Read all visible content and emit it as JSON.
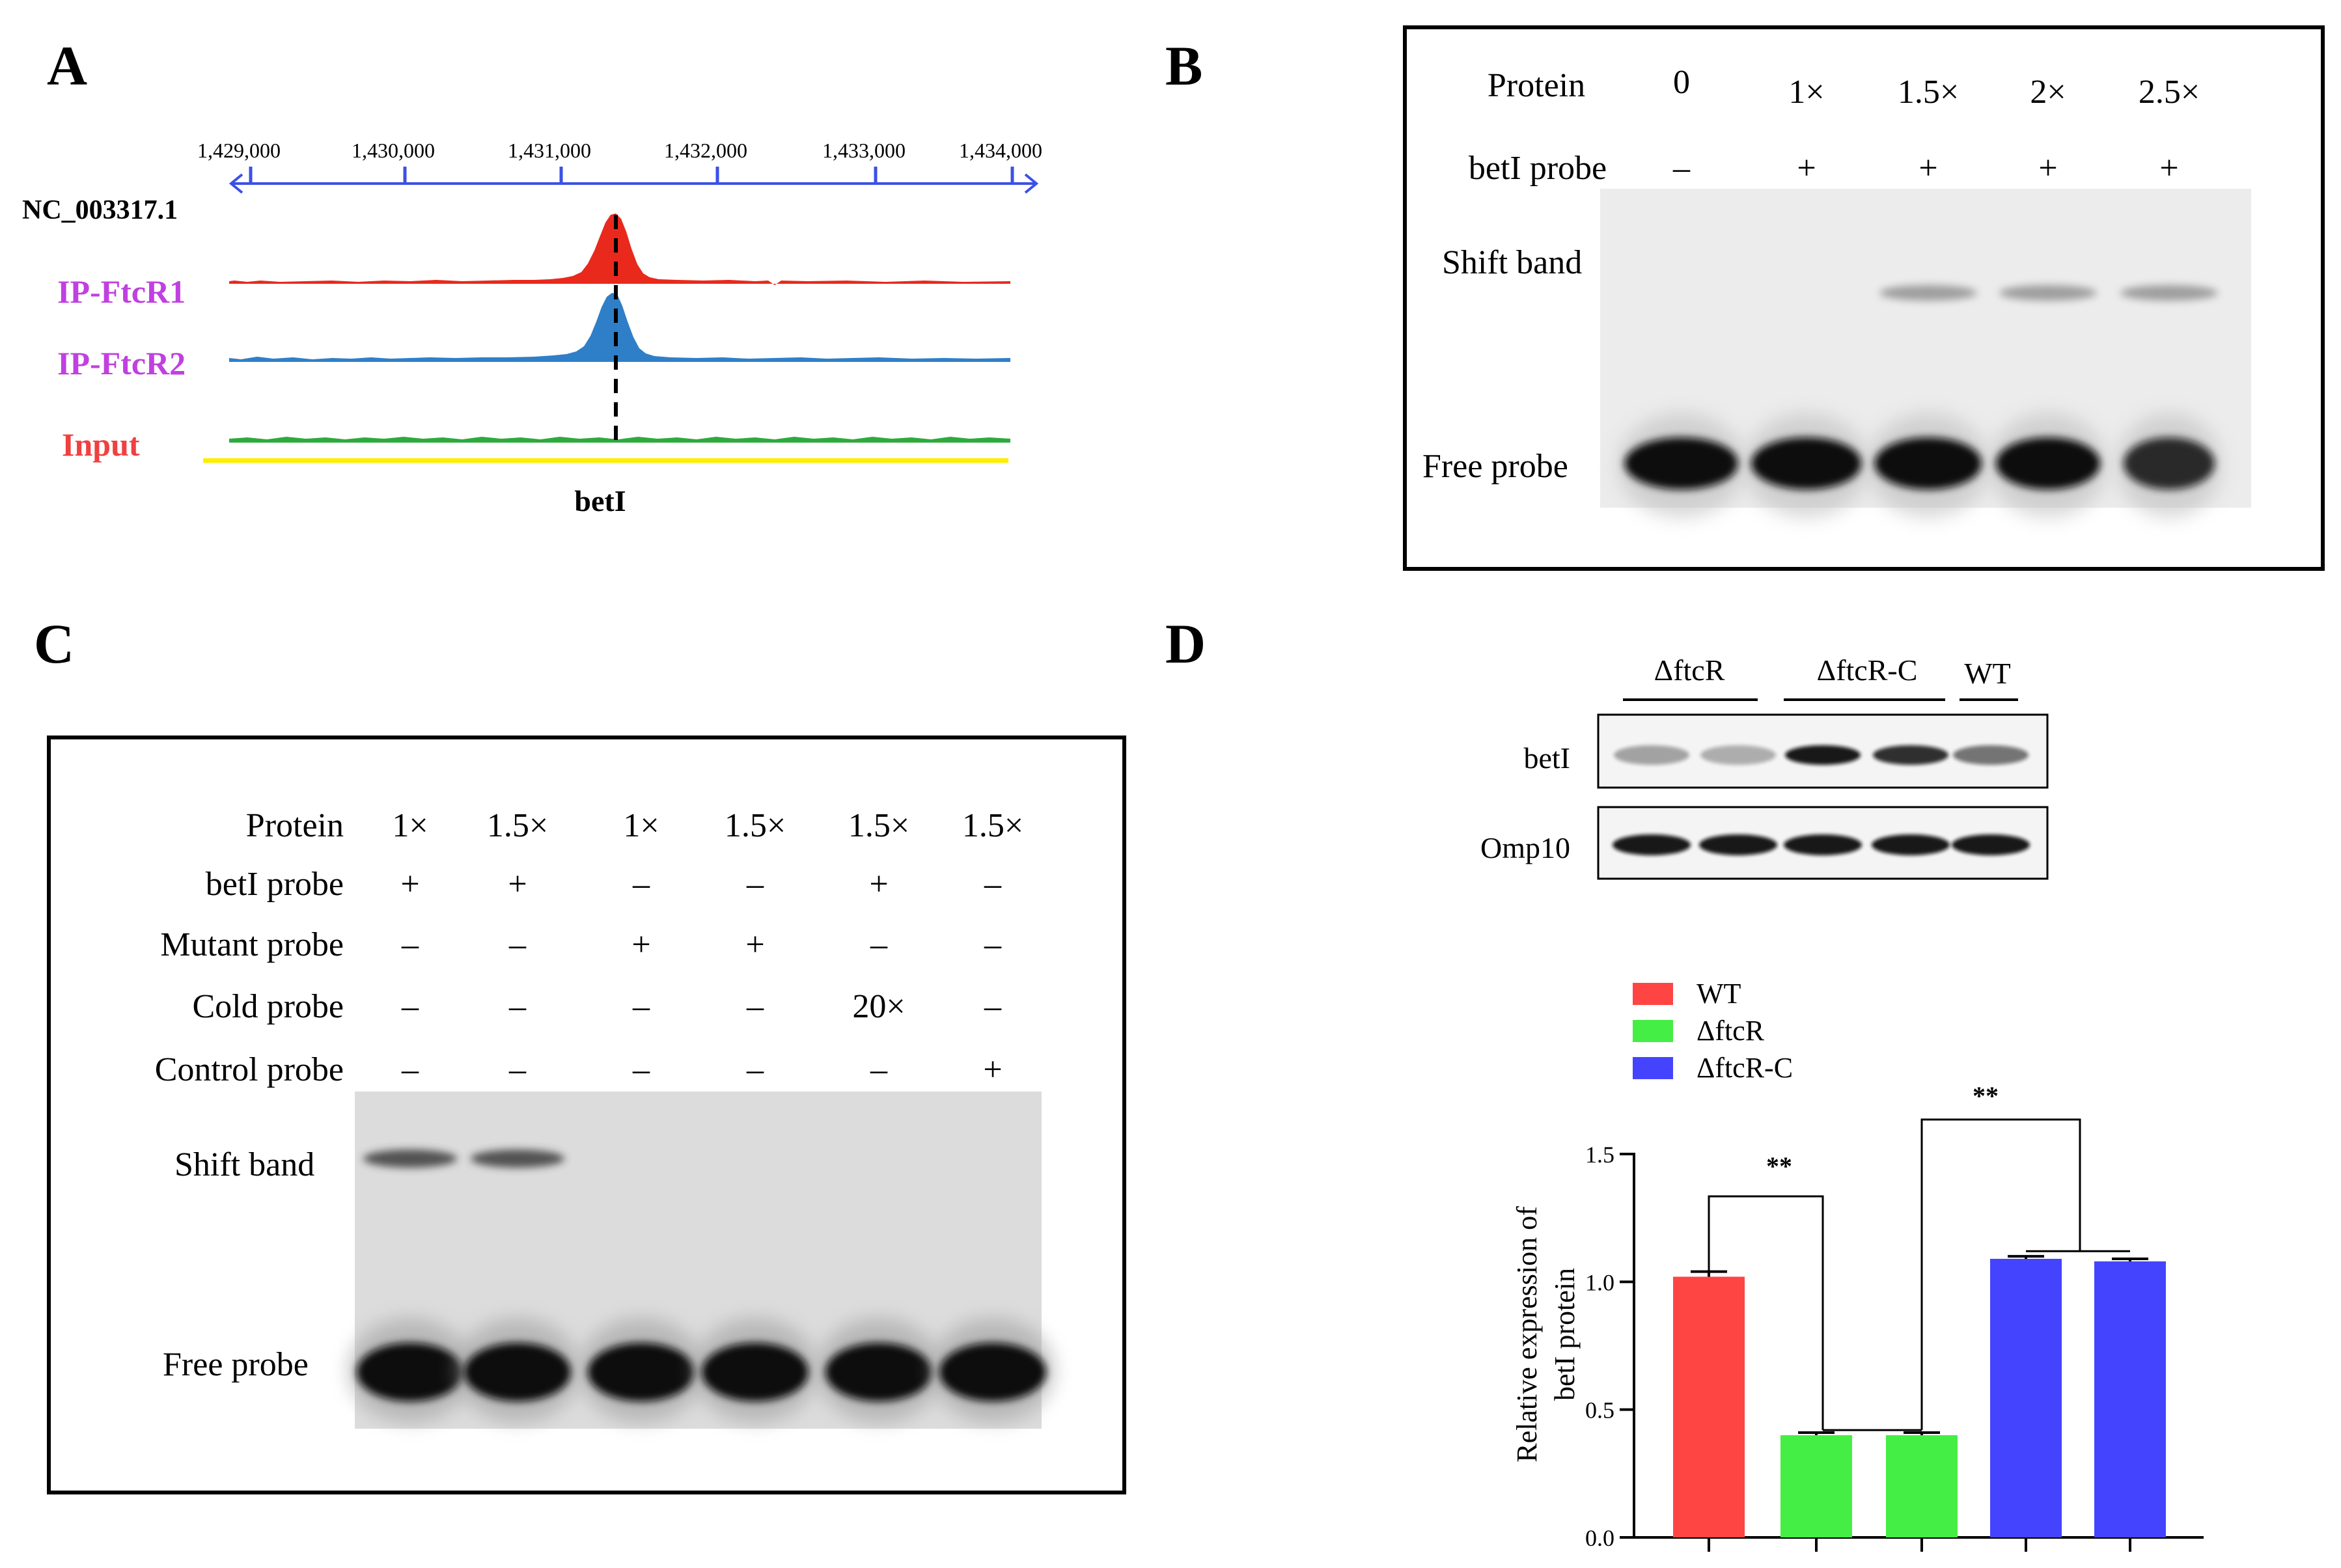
{
  "panels": {
    "a": "A",
    "b": "B",
    "c": "C",
    "d": "D"
  },
  "panel_a": {
    "ticks": [
      "1,429,000",
      "1,430,000",
      "1,431,000",
      "1,432,000",
      "1,433,000",
      "1,434,000"
    ],
    "chromosome": "NC_003317.1",
    "tracks": [
      {
        "label": "IP-FtcR1",
        "color": "#e8291c",
        "label_color": "#c040e0"
      },
      {
        "label": "IP-FtcR2",
        "color": "#2f7fc8",
        "label_color": "#c040e0"
      },
      {
        "label": "Input",
        "color": "#2eaa3c",
        "label_color": "#f04040"
      }
    ],
    "gene": "betI",
    "axis_color": "#3c50e6",
    "gene_color": "#ffee00"
  },
  "panel_b": {
    "rows": [
      {
        "label": "Protein",
        "values": [
          "0",
          "1×",
          "1.5×",
          "2×",
          "2.5×"
        ]
      },
      {
        "label": "betI probe",
        "values": [
          "–",
          "+",
          "+",
          "+",
          "+"
        ]
      }
    ],
    "shift_label": "Shift band",
    "free_label": "Free probe"
  },
  "panel_c": {
    "rows": [
      {
        "label": "Protein",
        "values": [
          "1×",
          "1.5×",
          "1×",
          "1.5×",
          "1.5×",
          "1.5×"
        ]
      },
      {
        "label": "betI probe",
        "values": [
          "+",
          "+",
          "–",
          "–",
          "+",
          "–"
        ]
      },
      {
        "label": "Mutant  probe",
        "values": [
          "–",
          "–",
          "+",
          "+",
          "–",
          "–"
        ]
      },
      {
        "label": "Cold  probe",
        "values": [
          "–",
          "–",
          "–",
          "–",
          "20×",
          "–"
        ]
      },
      {
        "label": "Control  probe",
        "values": [
          "–",
          "–",
          "–",
          "–",
          "–",
          "+"
        ]
      }
    ],
    "shift_label": "Shift band",
    "free_label": "Free probe"
  },
  "panel_d": {
    "blot_groups": [
      "ΔftcR",
      "ΔftcR-C",
      "WT"
    ],
    "blot_rows": [
      "betI",
      "Omp10"
    ],
    "legend": [
      {
        "name": "WT",
        "color": "#ff4444"
      },
      {
        "name": "ΔftcR",
        "color": "#44ee44"
      },
      {
        "name": "ΔftcR-C",
        "color": "#4444ff"
      }
    ],
    "ylabel_line1": "Relative expression of",
    "ylabel_line2": "betI protein",
    "significance": [
      "**",
      "**"
    ]
  },
  "chart_data": {
    "type": "bar",
    "categories": [
      "WT",
      "ΔftcR",
      "ΔftcR",
      "ΔftcR-C",
      "ΔftcR-C"
    ],
    "values": [
      1.02,
      0.4,
      0.4,
      1.09,
      1.08
    ],
    "errors": [
      0.02,
      0.01,
      0.01,
      0.01,
      0.01
    ],
    "colors": [
      "#ff4444",
      "#44ee44",
      "#44ee44",
      "#4444ff",
      "#4444ff"
    ],
    "ylim": [
      0.0,
      1.5
    ],
    "yticks": [
      "0.0",
      "0.5",
      "1.0",
      "1.5"
    ],
    "ylabel": "Relative expression of betI protein",
    "legend_position": "top-left"
  }
}
